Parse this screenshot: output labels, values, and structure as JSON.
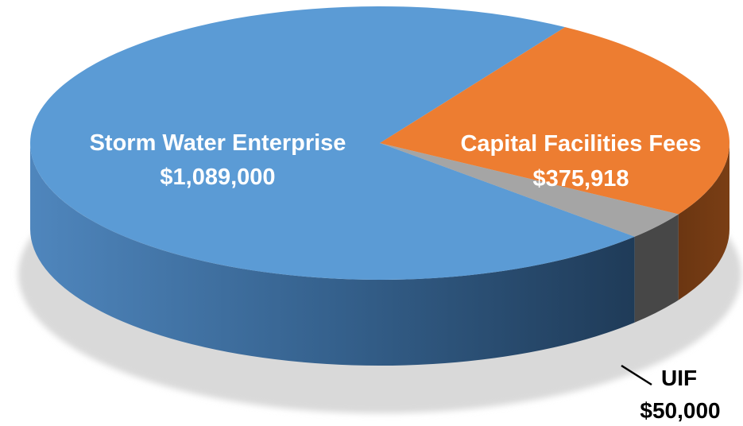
{
  "chart_data": {
    "type": "pie",
    "style": "3d",
    "title": "",
    "slices": [
      {
        "label": "Storm Water Enterprise",
        "value": 1089000,
        "value_label": "$1,089,000",
        "color": "#5b9bd5",
        "text_color": "#ffffff"
      },
      {
        "label": "Capital Facilities Fees",
        "value": 375918,
        "value_label": "$375,918",
        "color": "#ed7d31",
        "text_color": "#ffffff"
      },
      {
        "label": "UIF",
        "value": 50000,
        "value_label": "$50,000",
        "color": "#a5a5a5",
        "text_color": "#000000"
      }
    ]
  }
}
